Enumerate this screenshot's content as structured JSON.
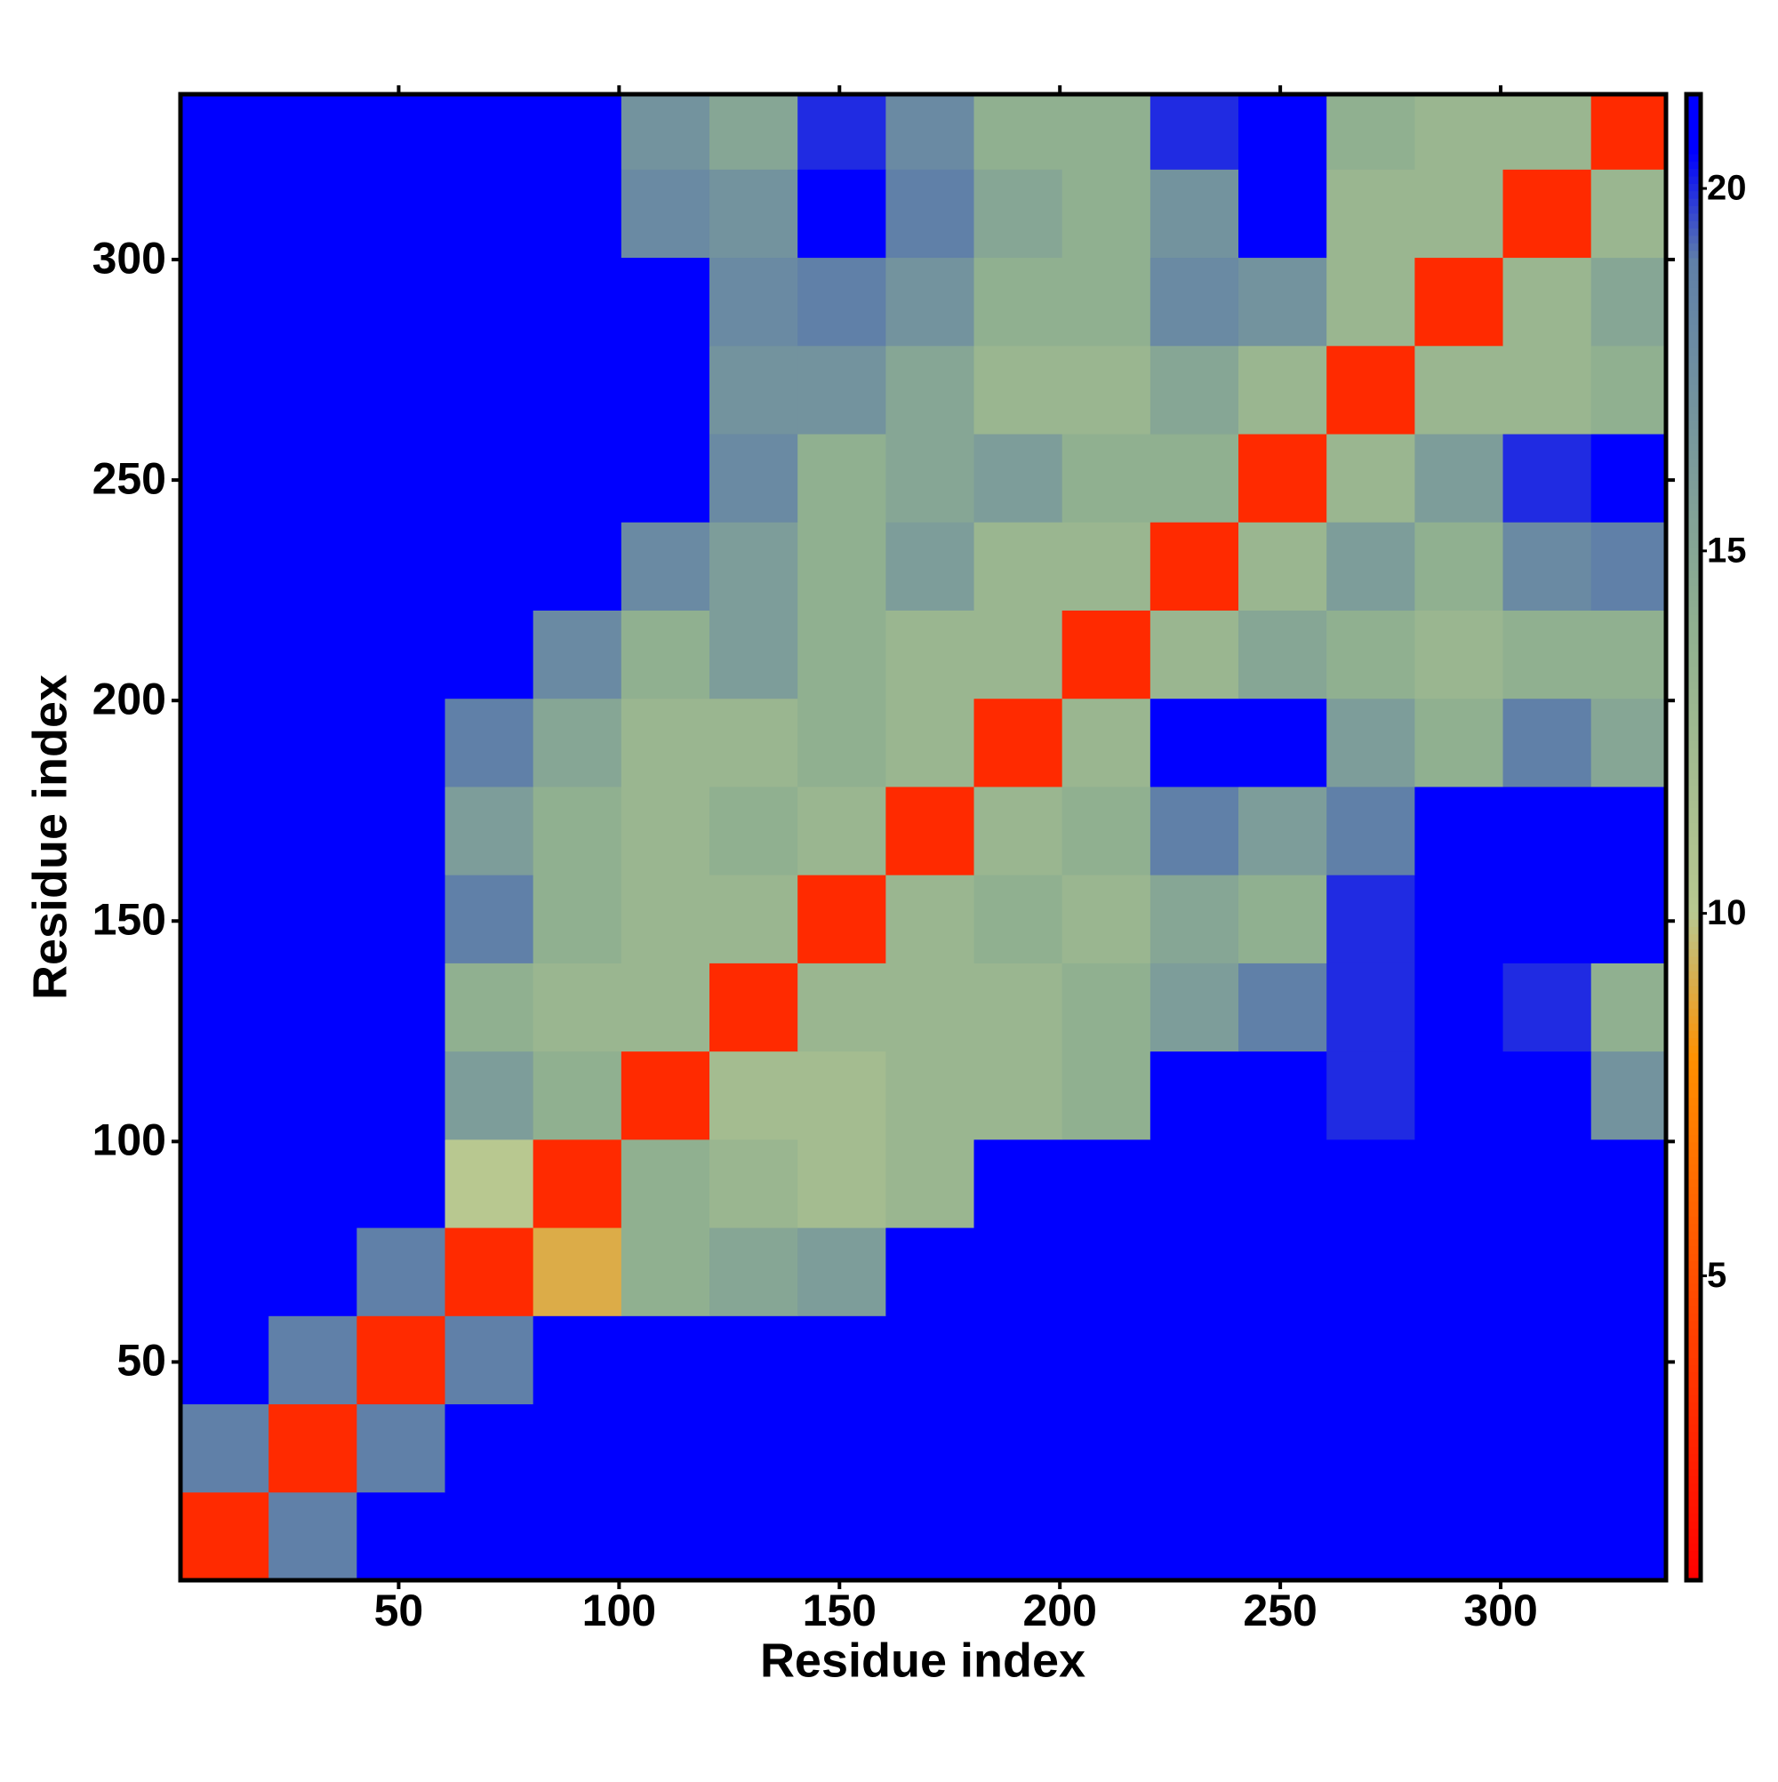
{
  "chart_data": {
    "type": "heatmap",
    "xlabel": "Residue index",
    "ylabel": "Residue index",
    "xlim": [
      0.5,
      337.5
    ],
    "ylim": [
      0.5,
      337.5
    ],
    "xticks": [
      50,
      100,
      150,
      200,
      250,
      300
    ],
    "yticks": [
      50,
      100,
      150,
      200,
      250,
      300
    ],
    "x_bins": [
      0.5,
      20.5,
      40.5,
      60.5,
      80.5,
      100.5,
      120.5,
      140.5,
      160.5,
      180.5,
      200.5,
      220.5,
      240.5,
      260.5,
      280.5,
      300.5,
      320.5,
      337.5
    ],
    "y_bins": [
      0.5,
      20.5,
      40.5,
      60.5,
      80.5,
      100.5,
      120.5,
      140.5,
      160.5,
      180.5,
      200.5,
      220.5,
      240.5,
      260.5,
      280.5,
      300.5,
      320.5,
      337.5
    ],
    "z": [
      [
        3,
        19,
        21,
        21,
        21,
        21,
        21,
        21,
        21,
        21,
        21,
        21,
        21,
        21,
        21,
        21,
        21
      ],
      [
        19,
        3,
        19,
        21,
        21,
        21,
        21,
        21,
        21,
        21,
        21,
        21,
        21,
        21,
        21,
        21,
        21
      ],
      [
        21,
        19,
        3,
        19,
        21,
        21,
        21,
        21,
        21,
        21,
        21,
        21,
        21,
        21,
        21,
        21,
        21
      ],
      [
        21,
        21,
        19,
        3,
        9,
        14,
        15,
        16,
        21,
        21,
        21,
        21,
        21,
        21,
        21,
        21,
        21
      ],
      [
        21,
        21,
        21,
        10,
        3,
        14,
        13,
        12,
        13,
        21,
        21,
        21,
        21,
        21,
        21,
        21,
        21
      ],
      [
        21,
        21,
        21,
        16,
        14,
        3,
        12,
        12,
        13,
        13,
        14,
        21,
        21,
        20,
        21,
        21,
        17
      ],
      [
        21,
        21,
        21,
        14,
        13,
        13,
        3,
        13,
        13,
        13,
        14,
        16,
        19,
        20,
        21,
        20,
        14
      ],
      [
        21,
        21,
        21,
        19,
        14,
        13,
        13,
        3,
        13,
        14,
        13,
        15,
        14,
        20,
        21,
        21,
        21
      ],
      [
        21,
        21,
        21,
        16,
        14,
        13,
        14,
        13,
        3,
        13,
        14,
        19,
        16,
        19,
        21,
        21,
        21
      ],
      [
        21,
        21,
        21,
        19,
        15,
        13,
        13,
        14,
        13,
        3,
        13,
        21,
        21,
        16,
        14,
        19,
        15
      ],
      [
        21,
        21,
        21,
        21,
        18,
        14,
        16,
        14,
        13,
        13,
        3,
        13,
        15,
        14,
        13,
        14,
        14
      ],
      [
        21,
        21,
        21,
        21,
        21,
        18,
        16,
        14,
        16,
        13,
        13,
        3,
        13,
        16,
        14,
        18,
        19
      ],
      [
        21,
        21,
        21,
        21,
        21,
        21,
        18,
        14,
        15,
        16,
        14,
        14,
        3,
        13,
        16,
        20,
        21
      ],
      [
        21,
        21,
        21,
        21,
        21,
        21,
        17,
        17,
        15,
        13,
        13,
        15,
        13,
        3,
        13,
        13,
        14
      ],
      [
        21,
        21,
        21,
        21,
        21,
        21,
        18,
        19,
        17,
        14,
        14,
        18,
        17,
        13,
        3,
        13,
        15
      ],
      [
        21,
        21,
        21,
        21,
        21,
        18,
        17,
        21,
        19,
        15,
        14,
        17,
        21,
        13,
        13,
        3,
        13
      ],
      [
        21,
        21,
        21,
        21,
        21,
        17,
        15,
        20,
        18,
        14,
        14,
        20,
        21,
        14,
        13,
        13,
        3
      ]
    ],
    "zlim": [
      0.8,
      21.3
    ],
    "zticks": [
      5,
      10,
      15,
      20
    ],
    "colorscale": [
      [
        0.8,
        "#ff0000"
      ],
      [
        5,
        "#ff5000"
      ],
      [
        8,
        "#ff9000"
      ],
      [
        10,
        "#b8c890"
      ],
      [
        14,
        "#90b090"
      ],
      [
        19,
        "#6080a8"
      ],
      [
        20.5,
        "#0000ff"
      ]
    ]
  }
}
